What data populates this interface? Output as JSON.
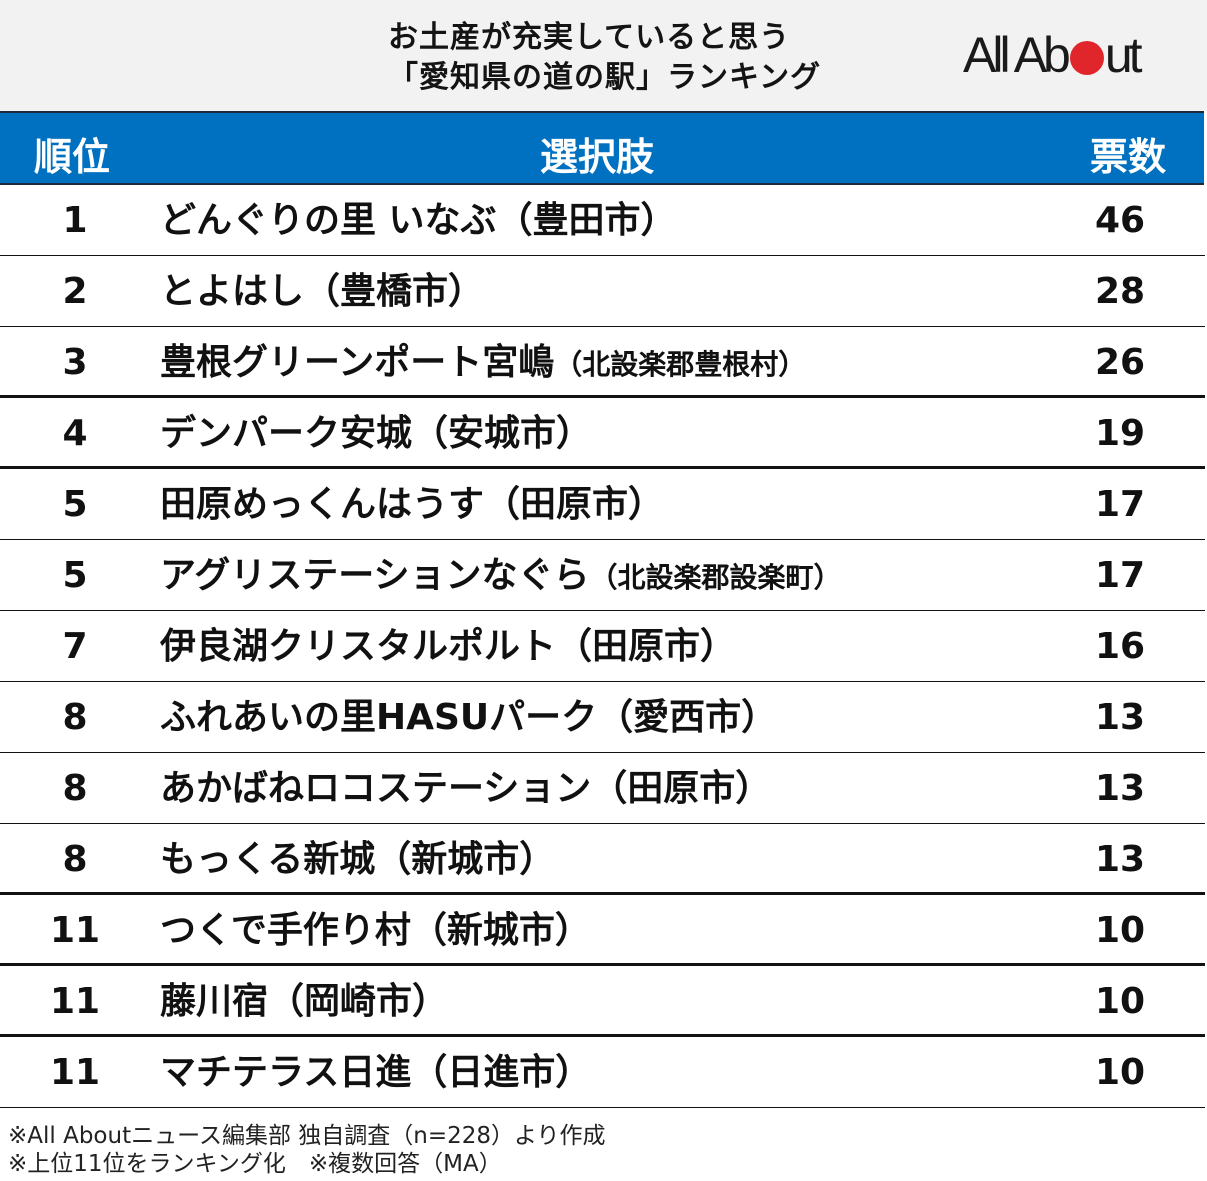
{
  "title": {
    "line1": "お土産が充実していると思う",
    "line2": "「愛知県の道の駅」ランキング"
  },
  "logo": {
    "text_before": "All Ab",
    "text_after": "ut",
    "dot_color": "#e0252b"
  },
  "colors": {
    "header_bg": "#0070c0",
    "title_bg": "#f2f2f2",
    "logo_dot": "#e0252b"
  },
  "header": {
    "rank": "順位",
    "choice": "選択肢",
    "votes": "票数"
  },
  "rows": [
    {
      "rank": "1",
      "name": "どんぐりの里 いなぶ",
      "pref": "（豊田市）",
      "votes": "46"
    },
    {
      "rank": "2",
      "name": "とよはし",
      "pref": "（豊橋市）",
      "votes": "28"
    },
    {
      "rank": "3",
      "name": "豊根グリーンポート宮嶋",
      "pref": "（北設楽郡豊根村）",
      "votes": "26"
    },
    {
      "rank": "4",
      "name": "デンパーク安城",
      "pref": "（安城市）",
      "votes": "19"
    },
    {
      "rank": "5",
      "name": "田原めっくんはうす",
      "pref": "（田原市）",
      "votes": "17"
    },
    {
      "rank": "5",
      "name": "アグリステーションなぐら",
      "pref": "（北設楽郡設楽町）",
      "votes": "17"
    },
    {
      "rank": "7",
      "name": "伊良湖クリスタルポルト",
      "pref": "（田原市）",
      "votes": "16"
    },
    {
      "rank": "8",
      "name": "ふれあいの里HASUパーク",
      "pref": "（愛西市）",
      "votes": "13"
    },
    {
      "rank": "8",
      "name": "あかばねロコステーション",
      "pref": "（田原市）",
      "votes": "13"
    },
    {
      "rank": "8",
      "name": "もっくる新城",
      "pref": "（新城市）",
      "votes": "13"
    },
    {
      "rank": "11",
      "name": "つくで手作り村",
      "pref": "（新城市）",
      "votes": "10"
    },
    {
      "rank": "11",
      "name": "藤川宿",
      "pref": "（岡崎市）",
      "votes": "10"
    },
    {
      "rank": "11",
      "name": "マチテラス日進",
      "pref": "（日進市）",
      "votes": "10"
    }
  ],
  "footer": {
    "note1": "※All Aboutニュース編集部 独自調査（n=228）より作成",
    "note2": "※上位11位をランキング化　※複数回答（MA）"
  },
  "chart_data": {
    "type": "table",
    "title": "お土産が充実していると思う「愛知県の道の駅」ランキング",
    "columns": [
      "順位",
      "選択肢",
      "票数"
    ],
    "categories": [
      "どんぐりの里 いなぶ（豊田市）",
      "とよはし（豊橋市）",
      "豊根グリーンポート宮嶋（北設楽郡豊根村）",
      "デンパーク安城（安城市）",
      "田原めっくんはうす（田原市）",
      "アグリステーションなぐら（北設楽郡設楽町）",
      "伊良湖クリスタルポルト（田原市）",
      "ふれあいの里HASUパーク（愛西市）",
      "あかばねロコステーション（田原市）",
      "もっくる新城（新城市）",
      "つくで手作り村（新城市）",
      "藤川宿（岡崎市）",
      "マチテラス日進（日進市）"
    ],
    "ranks": [
      1,
      2,
      3,
      4,
      5,
      5,
      7,
      8,
      8,
      8,
      11,
      11,
      11
    ],
    "values": [
      46,
      28,
      26,
      19,
      17,
      17,
      16,
      13,
      13,
      13,
      10,
      10,
      10
    ],
    "notes": [
      "※All Aboutニュース編集部 独自調査（n=228）より作成",
      "※上位11位をランキング化　※複数回答（MA）"
    ]
  }
}
